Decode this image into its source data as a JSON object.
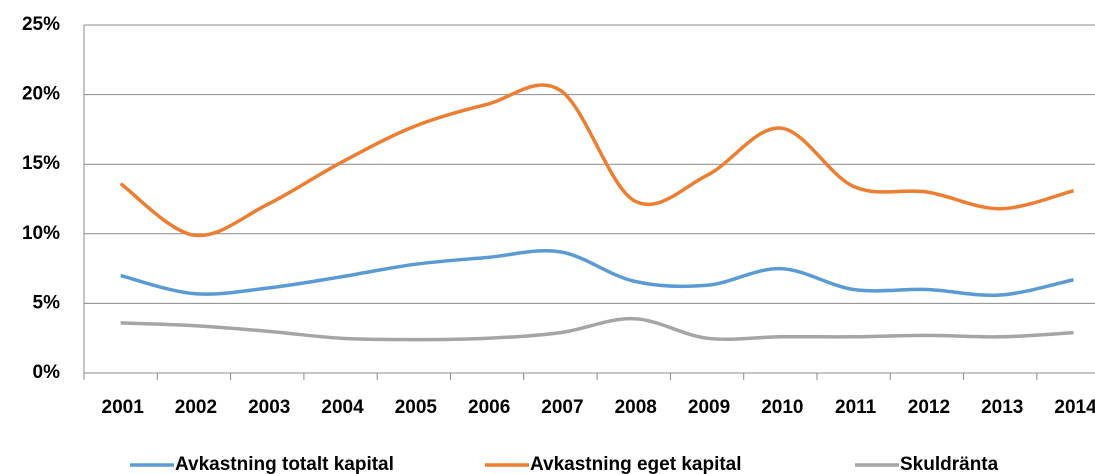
{
  "chart_data": {
    "type": "line",
    "categories": [
      "2001",
      "2002",
      "2003",
      "2004",
      "2005",
      "2006",
      "2007",
      "2008",
      "2009",
      "2010",
      "2011",
      "2012",
      "2013",
      "2014"
    ],
    "series": [
      {
        "name": "Avkastning totalt kapital",
        "color": "#5b9bd5",
        "values": [
          7.0,
          5.7,
          6.1,
          6.9,
          7.8,
          8.3,
          8.7,
          6.6,
          6.3,
          7.5,
          6.0,
          6.0,
          5.6,
          6.7
        ]
      },
      {
        "name": "Avkastning eget kapital",
        "color": "#ed7d31",
        "values": [
          13.6,
          9.9,
          12.1,
          15.1,
          17.7,
          19.3,
          20.3,
          12.4,
          14.2,
          17.6,
          13.4,
          13.0,
          11.8,
          13.1
        ]
      },
      {
        "name": "Skuldränta",
        "color": "#a5a5a5",
        "values": [
          3.6,
          3.4,
          3.0,
          2.5,
          2.4,
          2.5,
          2.9,
          3.9,
          2.5,
          2.6,
          2.6,
          2.7,
          2.6,
          2.9
        ]
      }
    ],
    "ylim": [
      0,
      25
    ],
    "yticks": [
      {
        "value": 0,
        "label": "0%"
      },
      {
        "value": 5,
        "label": "5%"
      },
      {
        "value": 10,
        "label": "10%"
      },
      {
        "value": 15,
        "label": "15%"
      },
      {
        "value": 20,
        "label": "20%"
      },
      {
        "value": 25,
        "label": "25%"
      }
    ],
    "grid": true,
    "legend": "bottom"
  }
}
